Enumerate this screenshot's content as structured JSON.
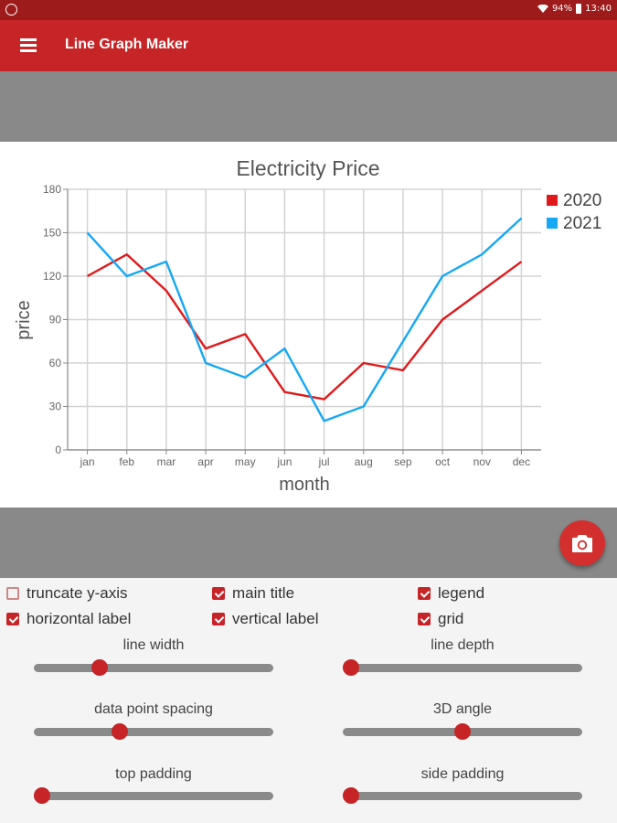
{
  "status": {
    "battery": "94%",
    "time": "13:40"
  },
  "appbar": {
    "title": "Line Graph Maker"
  },
  "chart_data": {
    "type": "line",
    "title": "Electricity Price",
    "xlabel": "month",
    "ylabel": "price",
    "categories": [
      "jan",
      "feb",
      "mar",
      "apr",
      "may",
      "jun",
      "jul",
      "aug",
      "sep",
      "oct",
      "nov",
      "dec"
    ],
    "ylim": [
      0,
      180
    ],
    "yticks": [
      0,
      30,
      60,
      90,
      120,
      150,
      180
    ],
    "grid": true,
    "legend_position": "top-right",
    "series": [
      {
        "name": "2020",
        "color": "#e0191c",
        "values": [
          120,
          135,
          110,
          70,
          80,
          40,
          35,
          60,
          55,
          90,
          110,
          130
        ]
      },
      {
        "name": "2021",
        "color": "#14a8f5",
        "values": [
          150,
          120,
          130,
          60,
          50,
          70,
          20,
          30,
          75,
          120,
          135,
          160
        ]
      }
    ]
  },
  "checkboxes": [
    {
      "label": "truncate y-axis",
      "checked": false
    },
    {
      "label": "main title",
      "checked": true
    },
    {
      "label": "legend",
      "checked": true
    },
    {
      "label": "horizontal label",
      "checked": true
    },
    {
      "label": "vertical label",
      "checked": true
    },
    {
      "label": "grid",
      "checked": true
    }
  ],
  "sliders": [
    {
      "label": "line width",
      "value": 0.26
    },
    {
      "label": "line depth",
      "value": 0.0
    },
    {
      "label": "data point spacing",
      "value": 0.35
    },
    {
      "label": "3D angle",
      "value": 0.5
    },
    {
      "label": "top padding",
      "value": 0.0
    },
    {
      "label": "side padding",
      "value": 0.0
    }
  ],
  "icons": {
    "menu": "hamburger-menu-icon",
    "camera": "camera-icon"
  }
}
